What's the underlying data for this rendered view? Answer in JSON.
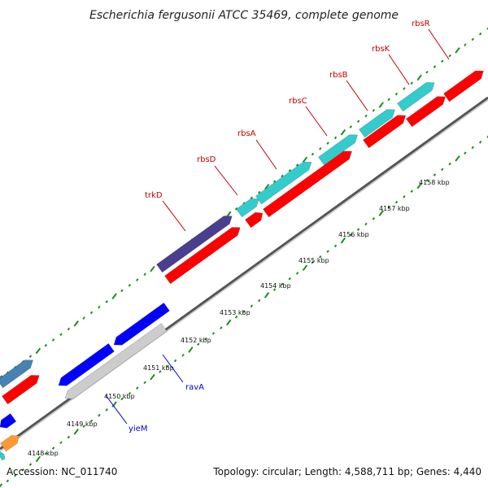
{
  "title": "Escherichia fergusonii ATCC 35469, complete genome",
  "footer": {
    "accession": "Accession: NC_011740",
    "topology": "Topology: circular; Length: 4,588,711 bp; Genes: 4,440"
  },
  "colors": {
    "forward_cds": "#ff0000",
    "reverse_cds": "#0000ff",
    "operon_ribose": "#33cccc",
    "trk": "#4a3f8f",
    "other_gene": "#cccccc",
    "orange_gene": "#ff9933",
    "label_forward": "#c00000",
    "label_reverse": "#0000cc",
    "tick": "#1a8c1a"
  },
  "ticks": [
    "4148 kbp",
    "4149 kbp",
    "4150 kbp",
    "4151 kbp",
    "4152 kbp",
    "4153 kbp",
    "4154 kbp",
    "4155 kbp",
    "4156 kbp",
    "4157 kbp",
    "4158 kbp"
  ],
  "genes": [
    {
      "name": "trkD",
      "color_key": "label_forward"
    },
    {
      "name": "rbsD",
      "color_key": "label_forward"
    },
    {
      "name": "rbsA",
      "color_key": "label_forward"
    },
    {
      "name": "rbsC",
      "color_key": "label_forward"
    },
    {
      "name": "rbsB",
      "color_key": "label_forward"
    },
    {
      "name": "rbsK",
      "color_key": "label_forward"
    },
    {
      "name": "rbsR",
      "color_key": "label_forward"
    },
    {
      "name": "ravA",
      "color_key": "label_reverse"
    },
    {
      "name": "yieM",
      "color_key": "label_reverse"
    }
  ]
}
